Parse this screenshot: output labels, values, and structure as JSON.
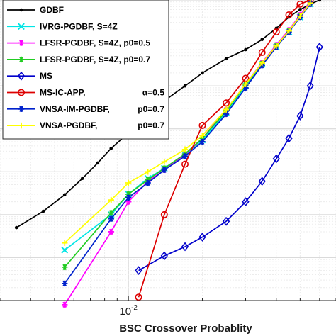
{
  "chart_data": {
    "type": "line",
    "xlabel": "BSC Crossover Probablity",
    "xscale": "log",
    "yscale": "log",
    "xlim": [
      0.003,
      0.07
    ],
    "ylim": [
      1e-10,
      0.001
    ],
    "x_tick_labels": [
      {
        "x": 0.01,
        "base": "10",
        "exp": "-2"
      }
    ],
    "grid": true,
    "legend_placement": "top-left",
    "series": [
      {
        "name": "GDBF",
        "color": "#000000",
        "marker": "dot",
        "x": [
          0.0035,
          0.0045,
          0.0055,
          0.0065,
          0.0075,
          0.0085,
          0.01,
          0.012,
          0.014,
          0.017,
          0.02,
          0.025,
          0.03,
          0.035,
          0.04,
          0.045,
          0.05,
          0.055,
          0.06
        ],
        "y": [
          5e-09,
          1.2e-08,
          2.9e-08,
          7e-08,
          1.6e-07,
          3.5e-07,
          8e-07,
          2e-06,
          4.5e-06,
          1e-05,
          2e-05,
          4.3e-05,
          7e-05,
          0.00012,
          0.00022,
          0.0004,
          0.0006,
          0.0008,
          0.001
        ]
      },
      {
        "name": "IVRG-PGDBF, S=4Z",
        "color": "#00e5e5",
        "marker": "x",
        "x": [
          0.0055,
          0.0085,
          0.01,
          0.012,
          0.014,
          0.017,
          0.02,
          0.025,
          0.03,
          0.035,
          0.04,
          0.045,
          0.05,
          0.055
        ],
        "y": [
          1.5e-09,
          1e-08,
          3e-08,
          7e-08,
          1.2e-07,
          2.5e-07,
          5.5e-07,
          2.4e-06,
          1e-05,
          3.2e-05,
          8e-05,
          0.00018,
          0.0004,
          0.0008
        ]
      },
      {
        "name": "LFSR-PGDBF, S=4Z, p0=0.5",
        "color": "#ff00ff",
        "marker": "star",
        "x": [
          0.0055,
          0.0085,
          0.01,
          0.012,
          0.014,
          0.017,
          0.02,
          0.025,
          0.03,
          0.035,
          0.04,
          0.045,
          0.05,
          0.055
        ],
        "y": [
          8e-11,
          4e-09,
          2e-08,
          6e-08,
          1.1e-07,
          2.5e-07,
          6e-07,
          2.8e-06,
          1.1e-05,
          3.5e-05,
          9e-05,
          0.0002,
          0.00045,
          0.0009
        ]
      },
      {
        "name": "LFSR-PGDBF, S=4Z, p0=0.7",
        "color": "#22cc22",
        "marker": "star",
        "x": [
          0.0055,
          0.0085,
          0.01,
          0.012,
          0.014,
          0.017,
          0.02,
          0.025,
          0.03,
          0.035,
          0.04,
          0.045,
          0.05,
          0.055
        ],
        "y": [
          6e-10,
          1.1e-08,
          3e-08,
          6.5e-08,
          1.2e-07,
          2.6e-07,
          6e-07,
          2.6e-06,
          1.05e-05,
          3.3e-05,
          8.5e-05,
          0.00019,
          0.00042,
          0.00085
        ]
      },
      {
        "name": "MS",
        "color": "#0000cc",
        "marker": "diamond",
        "x": [
          0.011,
          0.014,
          0.017,
          0.02,
          0.025,
          0.03,
          0.035,
          0.04,
          0.045,
          0.05,
          0.055,
          0.06
        ],
        "y": [
          5e-10,
          1.1e-09,
          1.8e-09,
          3e-09,
          7e-09,
          2e-08,
          6e-08,
          2e-07,
          6e-07,
          2e-06,
          1e-05,
          8e-05
        ]
      },
      {
        "name": "MS-IC-APP,",
        "param": "α=0.5",
        "color": "#dd0000",
        "marker": "circle",
        "x": [
          0.011,
          0.014,
          0.017,
          0.02,
          0.025,
          0.03,
          0.035,
          0.04,
          0.045,
          0.05,
          0.055
        ],
        "y": [
          1.2e-10,
          1e-08,
          1.5e-07,
          1.2e-06,
          4e-06,
          1.5e-05,
          6e-05,
          0.00018,
          0.00045,
          0.0008,
          0.001
        ]
      },
      {
        "name": "VNSA-IM-PGDBF,",
        "param": "p0=0.7",
        "color": "#0022cc",
        "marker": "star",
        "x": [
          0.0055,
          0.0085,
          0.01,
          0.012,
          0.014,
          0.017,
          0.02,
          0.025,
          0.03,
          0.035,
          0.04,
          0.045,
          0.05,
          0.055
        ],
        "y": [
          2.5e-10,
          8e-09,
          2.5e-08,
          5.5e-08,
          1.1e-07,
          2.3e-07,
          5e-07,
          2.2e-06,
          9e-06,
          3e-05,
          8e-05,
          0.00018,
          0.0004,
          0.0008
        ]
      },
      {
        "name": "VNSA-PGDBF,",
        "param": "p0=0.7",
        "color": "#ffff00",
        "marker": "plus",
        "x": [
          0.0055,
          0.0085,
          0.01,
          0.012,
          0.014,
          0.017,
          0.02,
          0.025,
          0.03,
          0.035,
          0.04,
          0.045,
          0.05,
          0.055
        ],
        "y": [
          2.2e-09,
          2.2e-08,
          5.5e-08,
          1e-07,
          1.7e-07,
          3.3e-07,
          7e-07,
          2.8e-06,
          1.1e-05,
          3.4e-05,
          8.5e-05,
          0.00019,
          0.00042,
          0.00085
        ]
      }
    ]
  }
}
